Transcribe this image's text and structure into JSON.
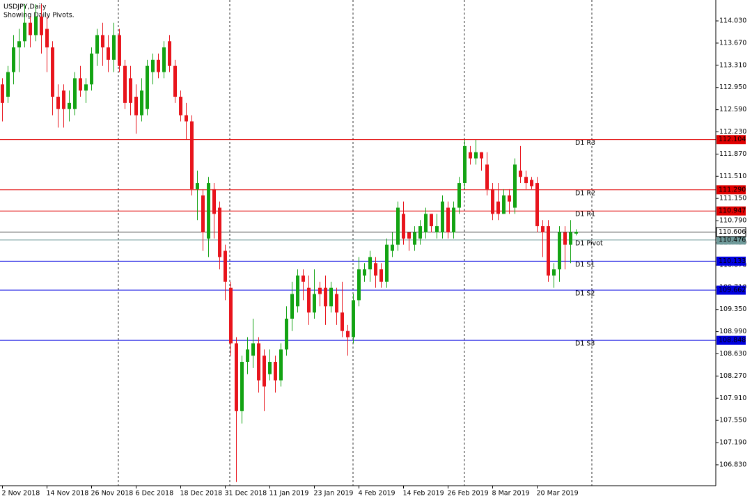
{
  "chart_data": {
    "type": "candlestick",
    "title": "USDJPY,Daily",
    "subtitle": "Showing Daily Pivots.",
    "categories": [
      "2 Nov 2018",
      null,
      null,
      null,
      null,
      null,
      null,
      null,
      "14 Nov 2018",
      null,
      null,
      null,
      null,
      null,
      null,
      null,
      "26 Nov 2018",
      null,
      null,
      null,
      null,
      null,
      null,
      null,
      "6 Dec 2018",
      null,
      null,
      null,
      null,
      null,
      null,
      null,
      "18 Dec 2018",
      null,
      null,
      null,
      null,
      null,
      null,
      null,
      "31 Dec 2018",
      null,
      null,
      null,
      null,
      null,
      null,
      null,
      "11 Jan 2019",
      null,
      null,
      null,
      null,
      null,
      null,
      null,
      "23 Jan 2019",
      null,
      null,
      null,
      null,
      null,
      null,
      null,
      "4 Feb 2019",
      null,
      null,
      null,
      null,
      null,
      null,
      null,
      "14 Feb 2019",
      null,
      null,
      null,
      null,
      null,
      null,
      null,
      "26 Feb 2019",
      null,
      null,
      null,
      null,
      null,
      null,
      null,
      "8 Mar 2019",
      null,
      null,
      null,
      null,
      null,
      null,
      null,
      "20 Mar 2019",
      null,
      null,
      null,
      null,
      null,
      null,
      null
    ],
    "open": [
      113.0,
      112.8,
      113.2,
      113.6,
      113.7,
      114.0,
      113.8,
      114.1,
      113.9,
      113.6,
      112.8,
      112.9,
      112.6,
      112.6,
      113.1,
      112.9,
      113.0,
      113.5,
      113.8,
      113.6,
      113.4,
      113.8,
      113.3,
      113.1,
      112.8,
      112.5,
      112.6,
      113.2,
      113.4,
      113.2,
      113.7,
      113.3,
      112.8,
      112.5,
      112.4,
      111.3,
      111.2,
      110.5,
      111.3,
      111.0,
      110.3,
      109.7,
      108.8,
      107.7,
      108.5,
      108.6,
      108.8,
      108.6,
      108.3,
      108.5,
      108.2,
      108.7,
      109.2,
      109.4,
      109.9,
      109.7,
      109.3,
      109.7,
      109.7,
      109.4,
      109.6,
      109.3,
      109.0,
      108.9,
      109.5,
      109.9,
      110.0,
      110.1,
      110.0,
      109.8,
      110.3,
      110.4,
      110.9,
      110.6,
      110.4,
      110.5,
      110.6,
      110.9,
      110.6,
      110.6,
      111.0,
      110.6,
      111.0,
      111.4,
      111.9,
      111.8,
      111.9,
      111.7,
      111.3,
      111.1,
      110.9,
      111.2,
      111.0,
      111.6,
      111.5,
      111.45,
      111.4,
      110.7,
      110.7,
      109.9,
      110.0,
      110.6,
      110.4,
      110.58
    ],
    "high": [
      113.1,
      113.3,
      113.8,
      113.9,
      114.3,
      114.1,
      114.3,
      114.3,
      114.1,
      113.7,
      113.0,
      113.0,
      112.9,
      113.2,
      113.3,
      113.1,
      113.6,
      113.9,
      114.0,
      113.8,
      114.0,
      113.9,
      113.4,
      113.3,
      113.0,
      113.1,
      113.4,
      113.5,
      113.5,
      113.7,
      113.8,
      113.4,
      112.9,
      112.7,
      112.5,
      111.6,
      111.3,
      111.5,
      111.4,
      111.1,
      110.4,
      109.8,
      108.9,
      108.6,
      108.9,
      109.2,
      108.9,
      108.7,
      108.7,
      108.6,
      108.8,
      109.4,
      109.8,
      110.0,
      110.0,
      109.9,
      110.0,
      109.8,
      109.9,
      109.8,
      109.7,
      109.8,
      109.1,
      109.6,
      110.2,
      110.1,
      110.3,
      110.2,
      110.1,
      110.5,
      110.6,
      111.1,
      111.1,
      110.6,
      110.7,
      110.8,
      111.0,
      110.9,
      110.9,
      111.2,
      111.1,
      111.1,
      111.5,
      112.1,
      112.0,
      112.1,
      111.9,
      111.9,
      111.4,
      111.4,
      111.3,
      111.3,
      111.8,
      112.0,
      111.6,
      111.5,
      111.5,
      110.8,
      110.8,
      110.1,
      110.7,
      110.7,
      110.8,
      110.65
    ],
    "low": [
      112.4,
      112.7,
      113.0,
      113.2,
      113.6,
      113.6,
      113.7,
      113.5,
      113.2,
      112.5,
      112.3,
      112.3,
      112.4,
      112.5,
      112.8,
      112.7,
      112.9,
      113.3,
      113.3,
      113.2,
      113.2,
      113.2,
      112.6,
      112.5,
      112.2,
      112.4,
      112.5,
      113.0,
      113.1,
      113.1,
      113.2,
      112.7,
      112.4,
      112.1,
      111.2,
      110.8,
      110.3,
      110.2,
      110.5,
      110.0,
      109.5,
      108.6,
      106.55,
      107.5,
      108.3,
      108.4,
      108.0,
      107.7,
      108.2,
      108.0,
      108.1,
      108.6,
      109.0,
      109.3,
      109.5,
      109.1,
      109.2,
      109.4,
      109.1,
      109.3,
      109.1,
      108.9,
      108.6,
      108.8,
      109.4,
      109.8,
      109.8,
      109.7,
      109.7,
      109.7,
      110.2,
      110.3,
      110.4,
      110.3,
      110.3,
      110.4,
      110.5,
      110.6,
      110.5,
      110.5,
      110.5,
      110.5,
      110.9,
      111.3,
      111.7,
      111.7,
      111.6,
      111.2,
      110.8,
      110.8,
      110.9,
      110.9,
      110.9,
      111.4,
      111.3,
      111.3,
      110.6,
      110.2,
      109.8,
      109.7,
      109.8,
      110.0,
      110.1,
      110.55
    ],
    "close": [
      112.7,
      113.2,
      113.6,
      113.7,
      114.0,
      113.8,
      114.1,
      113.8,
      113.6,
      112.8,
      112.6,
      112.6,
      112.7,
      113.1,
      112.9,
      113.0,
      113.5,
      113.8,
      113.6,
      113.4,
      113.8,
      113.3,
      112.7,
      112.7,
      112.5,
      112.9,
      113.3,
      113.4,
      113.2,
      113.6,
      113.3,
      112.8,
      112.5,
      112.4,
      111.3,
      111.4,
      110.6,
      111.4,
      110.9,
      110.2,
      109.8,
      108.8,
      107.7,
      108.5,
      108.7,
      108.8,
      108.2,
      108.1,
      108.5,
      108.2,
      108.7,
      109.2,
      109.6,
      109.9,
      109.8,
      109.3,
      109.6,
      109.6,
      109.4,
      109.7,
      109.3,
      109.0,
      108.9,
      109.5,
      110.0,
      110.0,
      110.2,
      109.9,
      109.8,
      110.4,
      110.4,
      111.0,
      110.5,
      110.5,
      110.6,
      110.7,
      110.9,
      110.7,
      110.7,
      111.1,
      110.6,
      111.0,
      111.4,
      112.0,
      111.8,
      111.9,
      111.8,
      111.3,
      110.9,
      110.9,
      111.2,
      111.1,
      111.7,
      111.5,
      111.4,
      111.35,
      110.7,
      110.6,
      109.9,
      110.0,
      110.6,
      110.4,
      110.6,
      110.61
    ],
    "up_color": "#13a313",
    "down_color": "#e8141c",
    "ylim": [
      106.491,
      114.369
    ],
    "yticks": [
      {
        "value": 114.03,
        "label": "114.030"
      },
      {
        "value": 113.67,
        "label": "113.670"
      },
      {
        "value": 113.31,
        "label": "113.310"
      },
      {
        "value": 112.95,
        "label": "112.950"
      },
      {
        "value": 112.59,
        "label": "112.590"
      },
      {
        "value": 112.23,
        "label": "112.230"
      },
      {
        "value": 111.87,
        "label": "111.870"
      },
      {
        "value": 111.51,
        "label": "111.510"
      },
      {
        "value": 111.15,
        "label": "111.150"
      },
      {
        "value": 110.79,
        "label": "110.790"
      },
      {
        "value": 110.43,
        "label": "110.430"
      },
      {
        "value": 110.07,
        "label": "110.070"
      },
      {
        "value": 109.71,
        "label": "109.710"
      },
      {
        "value": 109.35,
        "label": "109.350"
      },
      {
        "value": 108.99,
        "label": "108.990"
      },
      {
        "value": 108.63,
        "label": "108.630"
      },
      {
        "value": 108.27,
        "label": "108.270"
      },
      {
        "value": 107.91,
        "label": "107.910"
      },
      {
        "value": 107.55,
        "label": "107.550"
      },
      {
        "value": 107.19,
        "label": "107.190"
      },
      {
        "value": 106.83,
        "label": "106.830"
      }
    ],
    "levels": [
      {
        "name": "D1 R3",
        "value": 112.104,
        "label": "112.104",
        "color": "#e00000"
      },
      {
        "name": "D1 R2",
        "value": 111.29,
        "label": "111.290",
        "color": "#e00000"
      },
      {
        "name": "D1 R1",
        "value": 110.947,
        "label": "110.947",
        "color": "#e00000"
      },
      {
        "name": "D1 Pivot",
        "value": 110.476,
        "label": "110.476",
        "color": "#6f9a9a"
      },
      {
        "name": "D1 S1",
        "value": 110.133,
        "label": "110.133",
        "color": "#0000e0"
      },
      {
        "name": "D1 S2",
        "value": 109.662,
        "label": "109.662",
        "color": "#0000e0"
      },
      {
        "name": "D1 S3",
        "value": 108.848,
        "label": "108.848",
        "color": "#0000e0"
      }
    ],
    "last_price": {
      "value": 110.606,
      "label": "110.606"
    }
  }
}
